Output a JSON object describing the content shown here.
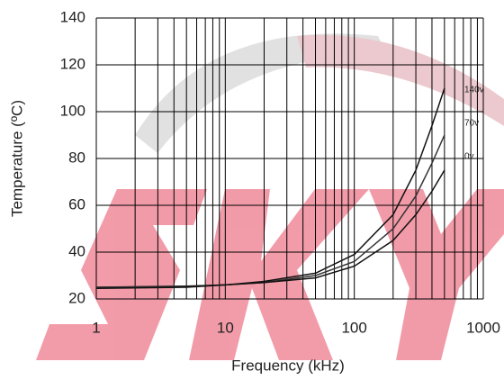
{
  "chart_data": {
    "type": "line",
    "y_label": "Temperature (ºC)",
    "x_label": "Frequency (kHz)",
    "log_x": true,
    "grid": true,
    "xlim": [
      1,
      1000
    ],
    "xticks": [
      1,
      10,
      100,
      1000
    ],
    "x_minor_grid": [
      2,
      3,
      4,
      5,
      6,
      7,
      8,
      9,
      20,
      30,
      40,
      50,
      60,
      70,
      80,
      90,
      200,
      300,
      400,
      500,
      600,
      700,
      800,
      900
    ],
    "ylim": [
      20,
      140
    ],
    "yticks": [
      20,
      40,
      60,
      80,
      100,
      120,
      140
    ],
    "x": [
      1,
      5,
      10,
      20,
      50,
      100,
      200,
      300,
      400,
      500
    ],
    "series": [
      {
        "name": "140v",
        "color": "#111111",
        "values": [
          25,
          25.5,
          26,
          27.5,
          31,
          39,
          56,
          75,
          94,
          110
        ]
      },
      {
        "name": "70v",
        "color": "#333333",
        "values": [
          25,
          25.3,
          26,
          27,
          30,
          36,
          50,
          64,
          78,
          90
        ]
      },
      {
        "name": "0v",
        "color": "#111111",
        "values": [
          24.5,
          25,
          26,
          27,
          29,
          34,
          45,
          56,
          66,
          75
        ]
      }
    ]
  }
}
